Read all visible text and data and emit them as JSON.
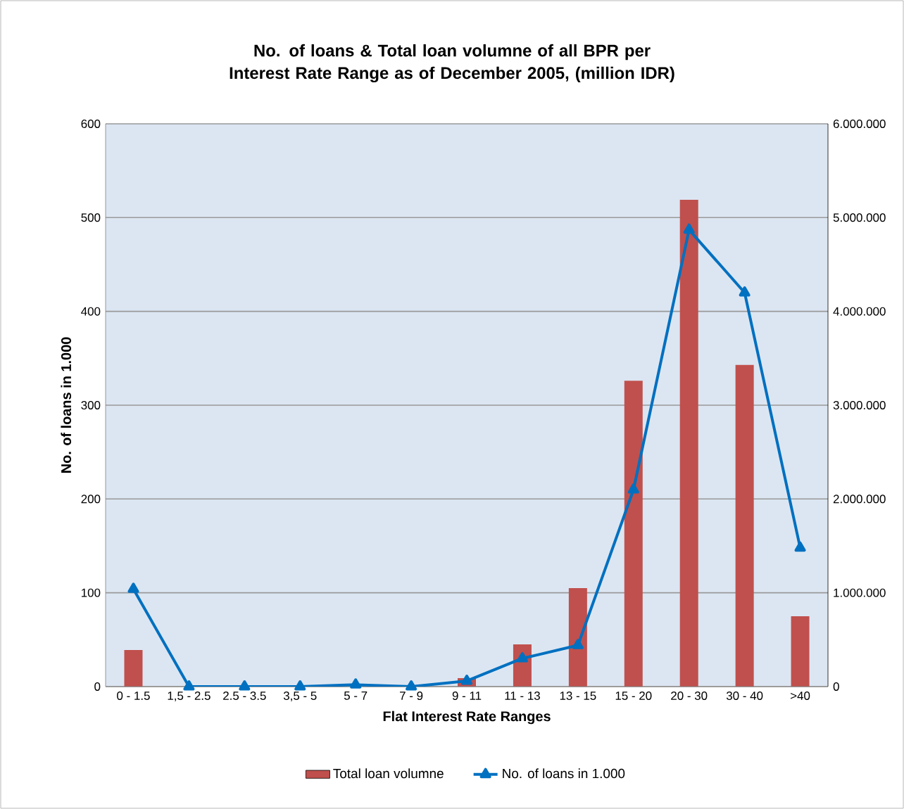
{
  "chart_data": {
    "type": "bar",
    "title": "No. of loans &  Total loan volumne of all BPR per Interest Rate Range as of December 2005, (million IDR)",
    "xlabel": "Flat Interest Rate Ranges",
    "ylabel": "No. of loans in 1.000",
    "categories": [
      "0 - 1.5",
      "1,5 - 2.5",
      "2.5 - 3.5",
      "3,5 - 5",
      "5 - 7",
      "7 - 9",
      "9 - 11",
      "11 - 13",
      "13 - 15",
      "15 - 20",
      "20 - 30",
      "30 - 40",
      ">40"
    ],
    "series": [
      {
        "name": "Total loan volumne",
        "axis": "y2",
        "color": "#c0504d",
        "values": [
          390000,
          0,
          0,
          0,
          0,
          0,
          90000,
          450000,
          1050000,
          3260000,
          5190000,
          3430000,
          750000
        ]
      },
      {
        "name": "No. of loans in 1.000",
        "type": "line",
        "color": "#0070c0",
        "marker": "triangle",
        "values": [
          104,
          0,
          0,
          0,
          2,
          0,
          6,
          30,
          44,
          210,
          487,
          420,
          148
        ]
      }
    ],
    "ylim": [
      0,
      600
    ],
    "yticks": [
      0,
      100,
      200,
      300,
      400,
      500,
      600
    ],
    "y2lim": [
      0,
      6000000
    ],
    "y2ticks": [
      0,
      {
        "value": 1000000,
        "label": "1.000.000"
      },
      {
        "value": 2000000,
        "label": "2.000.000"
      },
      {
        "value": 3000000,
        "label": "3.000.000"
      },
      {
        "value": 4000000,
        "label": "4.000.000"
      },
      {
        "value": 5000000,
        "label": "5.000.000"
      },
      {
        "value": 6000000,
        "label": "6.000.000"
      }
    ],
    "grid": "y",
    "legend": "bottom"
  }
}
